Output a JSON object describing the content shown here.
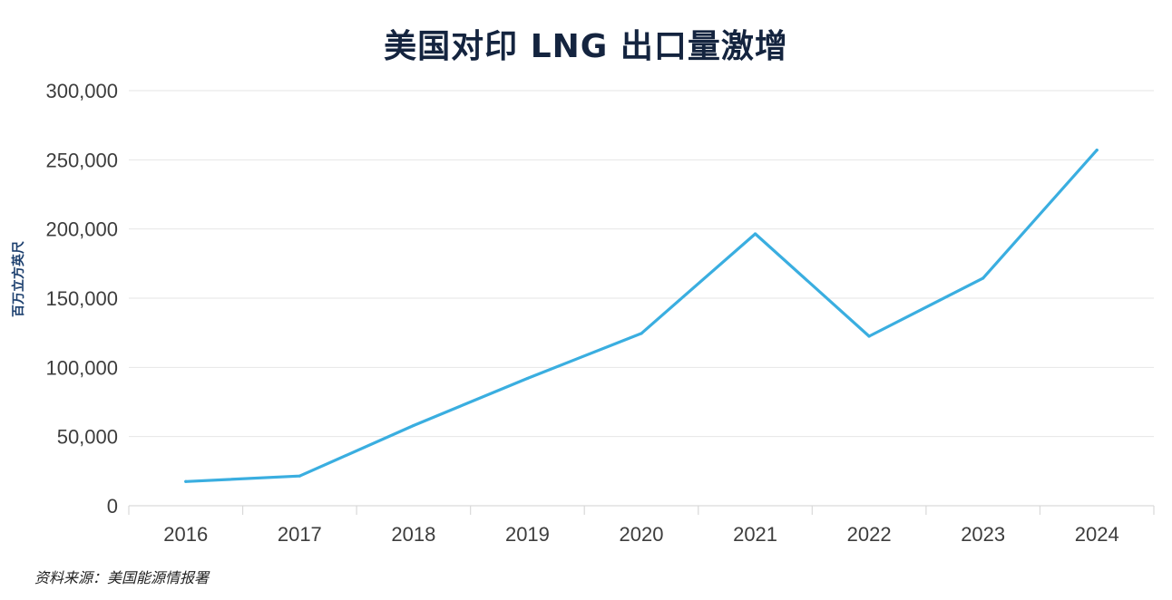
{
  "chart_data": {
    "type": "line",
    "title": "美国对印 LNG 出口量激增",
    "ylabel": "百万立方英尺",
    "xlabel": "",
    "source": "资料来源：美国能源情报署",
    "categories": [
      "2016",
      "2017",
      "2018",
      "2019",
      "2020",
      "2021",
      "2022",
      "2023",
      "2024"
    ],
    "series": [
      {
        "values": [
          17500,
          21500,
          58000,
          92000,
          124500,
          196500,
          122500,
          164500,
          257000
        ]
      }
    ],
    "ylim": [
      0,
      300000
    ],
    "yticks": [
      0,
      50000,
      100000,
      150000,
      200000,
      250000,
      300000
    ],
    "ytick_labels": [
      "0",
      "50,000",
      "100,000",
      "150,000",
      "200,000",
      "250,000",
      "300,000"
    ],
    "grid": true,
    "legend": "none",
    "colors": {
      "line": "#3aaee0",
      "grid": "#e6e6e6",
      "title": "#14243f",
      "ylabel": "#1c3f6e"
    }
  }
}
